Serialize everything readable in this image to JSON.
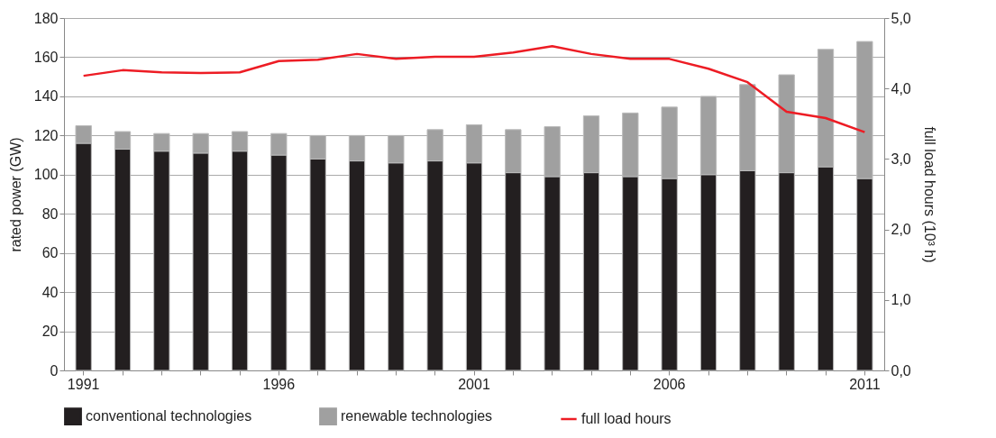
{
  "chart_data": {
    "type": "bar",
    "stacked": true,
    "categories": [
      "1991",
      null,
      null,
      null,
      null,
      "1996",
      null,
      null,
      null,
      null,
      "2001",
      null,
      null,
      null,
      null,
      "2006",
      null,
      null,
      null,
      null,
      "2011"
    ],
    "series": [
      {
        "name": "conventional technologies",
        "color": "#231f20",
        "values": [
          116,
          113,
          112,
          111,
          112,
          110,
          108,
          107,
          106,
          107,
          106,
          101,
          99,
          101,
          99,
          98,
          100,
          102,
          101,
          104,
          98
        ]
      },
      {
        "name": "renewable technologies",
        "color": "#a0a0a0",
        "values": [
          9,
          9,
          9,
          10,
          10,
          11,
          12,
          13,
          14,
          16,
          19.5,
          22,
          25.5,
          29,
          32.5,
          36.5,
          40,
          44,
          50,
          60,
          70
        ]
      },
      {
        "name": "full load hours",
        "type": "line",
        "axis": "y2",
        "color": "#ed1c24",
        "values": [
          4.18,
          4.26,
          4.23,
          4.22,
          4.23,
          4.39,
          4.41,
          4.49,
          4.42,
          4.45,
          4.45,
          4.51,
          4.6,
          4.49,
          4.42,
          4.42,
          4.28,
          4.09,
          3.67,
          3.58,
          3.38
        ]
      }
    ],
    "ylabel": "rated power (GW)",
    "y2label": "full load hours (10³ h)",
    "ylim": [
      0,
      180
    ],
    "yticks": [
      0,
      20,
      40,
      60,
      80,
      100,
      120,
      140,
      160,
      180
    ],
    "y2lim": [
      0,
      5
    ],
    "y2ticks": [
      {
        "value": 0,
        "label": "0,0"
      },
      {
        "value": 1,
        "label": "1,0"
      },
      {
        "value": 2,
        "label": "2,0"
      },
      {
        "value": 3,
        "label": "3,0"
      },
      {
        "value": 4,
        "label": "4,0"
      },
      {
        "value": 5,
        "label": "5,0"
      }
    ],
    "grid": "y",
    "legend": "bottom"
  }
}
